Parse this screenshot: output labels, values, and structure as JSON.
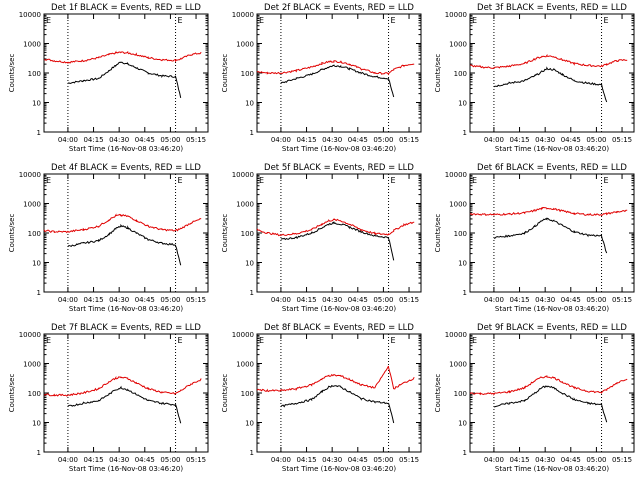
{
  "colors": {
    "events": "#000000",
    "lld": "#e00000",
    "axis": "#000000",
    "background": "#ffffff"
  },
  "common": {
    "ylabel": "Counts/sec",
    "xlabel": "Start Time (16-Nov-08 03:46:20)",
    "x_ticks": [
      "04:00",
      "04:15",
      "04:30",
      "04:45",
      "05:00",
      "05:15"
    ],
    "corner_marker": "E"
  },
  "chart_data": [
    {
      "type": "line",
      "title": "Det 1f BLACK = Events, RED = LLD",
      "xlabel": "Start Time (16-Nov-08 03:46:20)",
      "ylabel": "Counts/sec",
      "y_scale": "log",
      "ylim": [
        1,
        10000
      ],
      "y_ticks": [
        "1",
        "10",
        "100",
        "1000",
        "10000"
      ],
      "x": [
        "03:46",
        "03:52",
        "04:00",
        "04:09",
        "04:18",
        "04:24",
        "04:28",
        "04:31",
        "04:35",
        "04:40",
        "04:47",
        "04:55",
        "05:03",
        "05:06",
        "05:12",
        "05:18"
      ],
      "series": [
        {
          "name": "Events",
          "values": [
            null,
            null,
            45,
            55,
            65,
            120,
            180,
            240,
            200,
            150,
            100,
            80,
            75,
            15,
            null,
            null
          ]
        },
        {
          "name": "LLD",
          "values": [
            300,
            260,
            230,
            260,
            330,
            420,
            480,
            500,
            480,
            420,
            330,
            280,
            270,
            300,
            420,
            480
          ]
        }
      ],
      "dotted_lines_x": [
        "04:00",
        "05:03"
      ]
    },
    {
      "type": "line",
      "title": "Det 2f BLACK = Events, RED = LLD",
      "xlabel": "Start Time (16-Nov-08 03:46:20)",
      "ylabel": "Counts/sec",
      "y_scale": "log",
      "ylim": [
        1,
        10000
      ],
      "y_ticks": [
        "1",
        "10",
        "100",
        "1000",
        "10000"
      ],
      "x": [
        "03:46",
        "03:52",
        "04:00",
        "04:09",
        "04:18",
        "04:24",
        "04:28",
        "04:31",
        "04:35",
        "04:40",
        "04:47",
        "04:55",
        "05:03",
        "05:06",
        "05:12",
        "05:18"
      ],
      "series": [
        {
          "name": "Events",
          "values": [
            null,
            null,
            45,
            65,
            90,
            130,
            160,
            180,
            170,
            140,
            100,
            75,
            65,
            15,
            null,
            null
          ]
        },
        {
          "name": "LLD",
          "values": [
            110,
            100,
            100,
            120,
            160,
            210,
            240,
            250,
            240,
            200,
            140,
            100,
            95,
            130,
            180,
            210
          ]
        }
      ],
      "dotted_lines_x": [
        "04:00",
        "05:03"
      ]
    },
    {
      "type": "line",
      "title": "Det 3f BLACK = Events, RED = LLD",
      "xlabel": "Start Time (16-Nov-08 03:46:20)",
      "ylabel": "Counts/sec",
      "y_scale": "log",
      "ylim": [
        1,
        10000
      ],
      "y_ticks": [
        "1",
        "10",
        "100",
        "1000",
        "10000"
      ],
      "x": [
        "03:46",
        "03:52",
        "04:00",
        "04:09",
        "04:18",
        "04:24",
        "04:28",
        "04:31",
        "04:35",
        "04:40",
        "04:47",
        "04:55",
        "05:03",
        "05:06",
        "05:12",
        "05:18"
      ],
      "series": [
        {
          "name": "Events",
          "values": [
            null,
            null,
            35,
            45,
            55,
            80,
            110,
            140,
            130,
            90,
            55,
            45,
            40,
            10,
            null,
            null
          ]
        },
        {
          "name": "LLD",
          "values": [
            180,
            160,
            150,
            170,
            210,
            300,
            360,
            380,
            360,
            280,
            210,
            180,
            170,
            200,
            260,
            280
          ]
        }
      ],
      "dotted_lines_x": [
        "04:00",
        "05:03"
      ]
    },
    {
      "type": "line",
      "title": "Det 4f BLACK = Events, RED = LLD",
      "xlabel": "Start Time (16-Nov-08 03:46:20)",
      "ylabel": "Counts/sec",
      "y_scale": "log",
      "ylim": [
        1,
        10000
      ],
      "y_ticks": [
        "1",
        "10",
        "100",
        "1000",
        "10000"
      ],
      "x": [
        "03:46",
        "03:52",
        "04:00",
        "04:09",
        "04:18",
        "04:24",
        "04:28",
        "04:31",
        "04:35",
        "04:40",
        "04:47",
        "04:55",
        "05:03",
        "05:06",
        "05:12",
        "05:18"
      ],
      "series": [
        {
          "name": "Events",
          "values": [
            null,
            null,
            35,
            45,
            55,
            90,
            140,
            170,
            150,
            100,
            60,
            45,
            40,
            8,
            null,
            null
          ]
        },
        {
          "name": "LLD",
          "values": [
            120,
            110,
            110,
            130,
            170,
            280,
            380,
            400,
            370,
            270,
            170,
            130,
            120,
            140,
            220,
            300
          ]
        }
      ],
      "dotted_lines_x": [
        "04:00",
        "05:03"
      ]
    },
    {
      "type": "line",
      "title": "Det 5f BLACK = Events, RED = LLD",
      "xlabel": "Start Time (16-Nov-08 03:46:20)",
      "ylabel": "Counts/sec",
      "y_scale": "log",
      "ylim": [
        1,
        10000
      ],
      "y_ticks": [
        "1",
        "10",
        "100",
        "1000",
        "10000"
      ],
      "x": [
        "03:46",
        "03:52",
        "04:00",
        "04:09",
        "04:18",
        "04:24",
        "04:28",
        "04:31",
        "04:35",
        "04:40",
        "04:47",
        "04:55",
        "05:03",
        "05:06",
        "05:12",
        "05:18"
      ],
      "series": [
        {
          "name": "Events",
          "values": [
            null,
            null,
            60,
            70,
            100,
            150,
            200,
            220,
            200,
            160,
            110,
            80,
            70,
            12,
            null,
            null
          ]
        },
        {
          "name": "LLD",
          "values": [
            130,
            100,
            85,
            95,
            130,
            200,
            260,
            280,
            260,
            200,
            130,
            95,
            90,
            120,
            190,
            230
          ]
        }
      ],
      "dotted_lines_x": [
        "04:00",
        "05:03"
      ]
    },
    {
      "type": "line",
      "title": "Det 6f BLACK = Events, RED = LLD",
      "xlabel": "Start Time (16-Nov-08 03:46:20)",
      "ylabel": "Counts/sec",
      "y_scale": "log",
      "ylim": [
        1,
        10000
      ],
      "y_ticks": [
        "1",
        "10",
        "100",
        "1000",
        "10000"
      ],
      "x": [
        "03:46",
        "03:52",
        "04:00",
        "04:09",
        "04:18",
        "04:24",
        "04:28",
        "04:31",
        "04:35",
        "04:40",
        "04:47",
        "04:55",
        "05:03",
        "05:06",
        "05:12",
        "05:18"
      ],
      "series": [
        {
          "name": "Events",
          "values": [
            null,
            null,
            70,
            80,
            100,
            170,
            260,
            300,
            260,
            180,
            110,
            85,
            80,
            20,
            null,
            null
          ]
        },
        {
          "name": "LLD",
          "values": [
            450,
            430,
            420,
            440,
            480,
            580,
            680,
            700,
            660,
            560,
            460,
            420,
            420,
            450,
            520,
            560
          ]
        }
      ],
      "dotted_lines_x": [
        "04:00",
        "05:03"
      ]
    },
    {
      "type": "line",
      "title": "Det 7f BLACK = Events, RED = LLD",
      "xlabel": "Start Time (16-Nov-08 03:46:20)",
      "ylabel": "Counts/sec",
      "y_scale": "log",
      "ylim": [
        1,
        10000
      ],
      "y_ticks": [
        "1",
        "10",
        "100",
        "1000",
        "10000"
      ],
      "x": [
        "03:46",
        "03:52",
        "04:00",
        "04:09",
        "04:18",
        "04:24",
        "04:28",
        "04:31",
        "04:35",
        "04:40",
        "04:47",
        "04:55",
        "05:03",
        "05:06",
        "05:12",
        "05:18"
      ],
      "series": [
        {
          "name": "Events",
          "values": [
            null,
            null,
            35,
            45,
            55,
            90,
            130,
            150,
            130,
            90,
            55,
            45,
            40,
            10,
            null,
            null
          ]
        },
        {
          "name": "LLD",
          "values": [
            90,
            85,
            85,
            100,
            140,
            240,
            320,
            340,
            310,
            220,
            140,
            105,
            95,
            120,
            200,
            290
          ]
        }
      ],
      "dotted_lines_x": [
        "04:00",
        "05:03"
      ]
    },
    {
      "type": "line",
      "title": "Det 8f BLACK = Events, RED = LLD",
      "xlabel": "Start Time (16-Nov-08 03:46:20)",
      "ylabel": "Counts/sec",
      "y_scale": "log",
      "ylim": [
        1,
        10000
      ],
      "y_ticks": [
        "1",
        "10",
        "100",
        "1000",
        "10000"
      ],
      "x": [
        "03:46",
        "03:52",
        "04:00",
        "04:09",
        "04:18",
        "04:24",
        "04:28",
        "04:31",
        "04:35",
        "04:40",
        "04:47",
        "04:55",
        "05:03",
        "05:06",
        "05:12",
        "05:18"
      ],
      "series": [
        {
          "name": "Events",
          "values": [
            null,
            null,
            35,
            45,
            60,
            110,
            160,
            180,
            160,
            110,
            65,
            50,
            45,
            10,
            null,
            null
          ]
        },
        {
          "name": "LLD",
          "values": [
            130,
            120,
            120,
            140,
            190,
            300,
            390,
            400,
            380,
            290,
            190,
            150,
            800,
            140,
            220,
            320
          ]
        }
      ],
      "dotted_lines_x": [
        "04:00",
        "05:03"
      ]
    },
    {
      "type": "line",
      "title": "Det 9f BLACK = Events, RED = LLD",
      "xlabel": "Start Time (16-Nov-08 03:46:20)",
      "ylabel": "Counts/sec",
      "y_scale": "log",
      "ylim": [
        1,
        10000
      ],
      "y_ticks": [
        "1",
        "10",
        "100",
        "1000",
        "10000"
      ],
      "x": [
        "03:46",
        "03:52",
        "04:00",
        "04:09",
        "04:18",
        "04:24",
        "04:28",
        "04:31",
        "04:35",
        "04:40",
        "04:47",
        "04:55",
        "05:03",
        "05:06",
        "05:12",
        "05:18"
      ],
      "series": [
        {
          "name": "Events",
          "values": [
            null,
            null,
            35,
            45,
            55,
            100,
            150,
            170,
            150,
            100,
            60,
            45,
            40,
            10,
            null,
            null
          ]
        },
        {
          "name": "LLD",
          "values": [
            100,
            95,
            95,
            110,
            150,
            260,
            340,
            360,
            330,
            240,
            150,
            115,
            105,
            130,
            220,
            310
          ]
        }
      ],
      "dotted_lines_x": [
        "04:00",
        "05:03"
      ]
    }
  ]
}
